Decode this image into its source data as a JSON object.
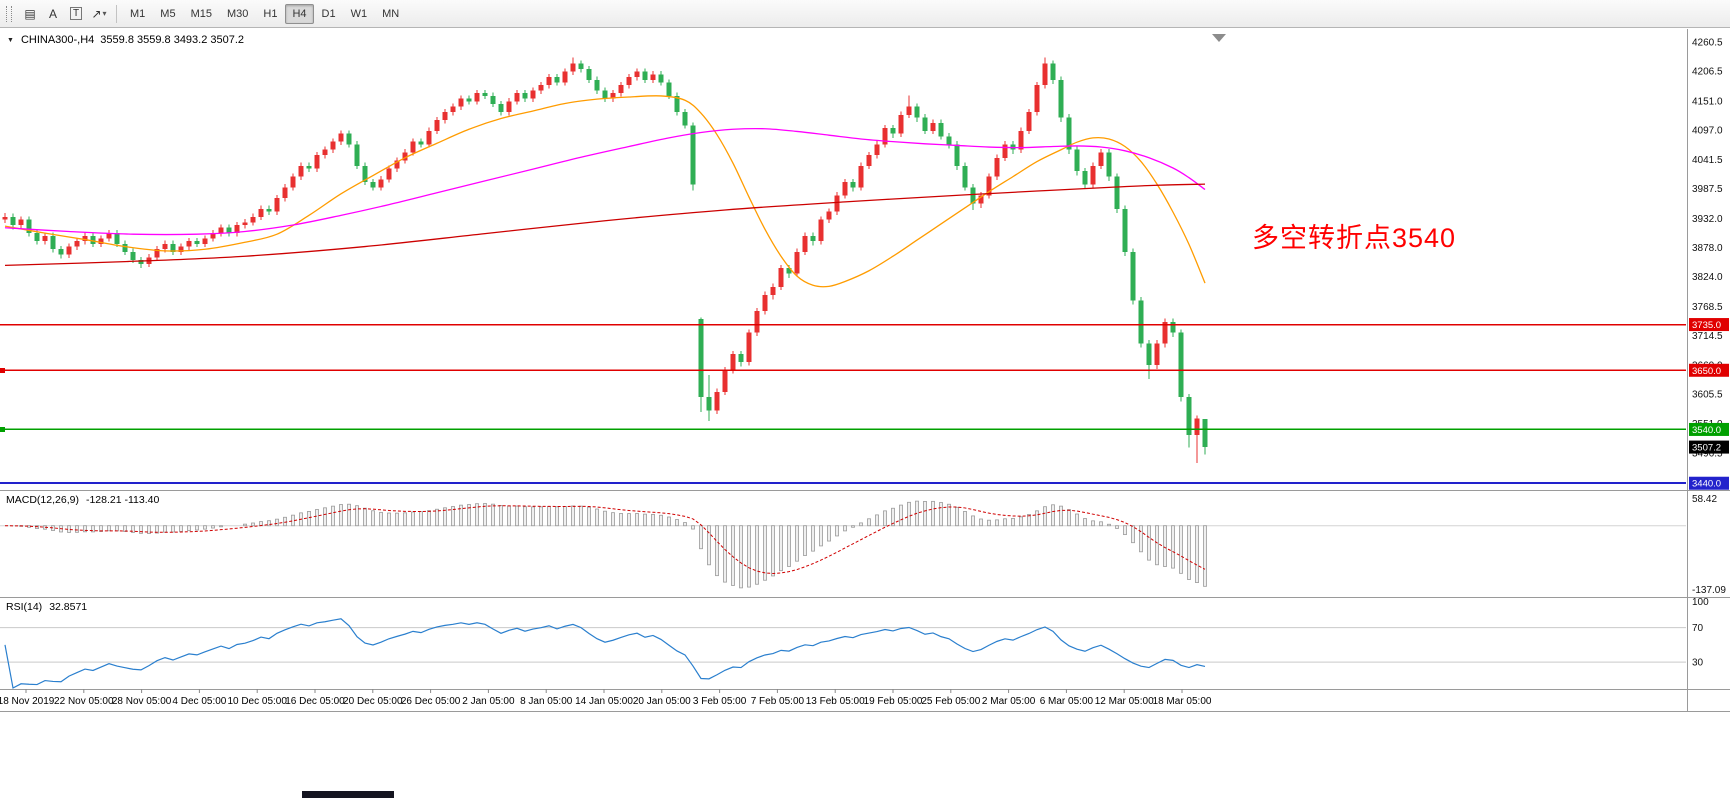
{
  "icons": {
    "charts_panel": "▤",
    "collapse": "▼",
    "caret_down": "▾",
    "arrow_shape": "↗"
  },
  "toolbar": {
    "tools": [
      {
        "id": "text",
        "label": "A"
      },
      {
        "id": "label",
        "label": "T"
      }
    ],
    "timeframes": [
      "M1",
      "M5",
      "M15",
      "M30",
      "H1",
      "H4",
      "D1",
      "W1",
      "MN"
    ],
    "active_timeframe": "H4"
  },
  "chart": {
    "title": "CHINA300-,H4",
    "ohlc_text": "3559.8 3559.8 3493.2 3507.2",
    "annotation": {
      "text": "多空转折点3540",
      "color": "#ff0000"
    }
  },
  "chart_data": {
    "type": "candlestick",
    "symbol": "CHINA300-",
    "timeframe": "H4",
    "ohlc_current": {
      "open": 3559.8,
      "high": 3559.8,
      "low": 3493.2,
      "close": 3507.2
    },
    "colors": {
      "up": "#e83030",
      "down": "#2fae54",
      "ma_fast": "#ff9c00",
      "ma_mid": "#ff00ff",
      "ma_slow": "#cc0000",
      "macd_hist_fill": "#efefef",
      "macd_hist_stroke": "#9a9a9a",
      "macd_signal": "#d00000",
      "rsi_line": "#2a7fce"
    },
    "price_axis": {
      "top_value": 4277,
      "bottom_value": 3433,
      "ticks": [
        "4260.5",
        "4206.5",
        "4151.0",
        "4097.0",
        "4041.5",
        "3987.5",
        "3932.0",
        "3878.0",
        "3824.0",
        "3768.5",
        "3714.5",
        "3660.0",
        "3605.5",
        "3551.0",
        "3496.5",
        "3442.0"
      ]
    },
    "hlines": [
      {
        "value": 3735.0,
        "label": "3735.0",
        "color": "#e00000",
        "width": 1.5,
        "edge_marker": false
      },
      {
        "value": 3650.0,
        "label": "3650.0",
        "color": "#e00000",
        "width": 1.5,
        "edge_marker": true
      },
      {
        "value": 3540.0,
        "label": "3540.0",
        "color": "#00a000",
        "width": 1.5,
        "edge_marker": true
      },
      {
        "value": 3440.0,
        "label": "3440.0",
        "color": "#2222cc",
        "width": 2,
        "edge_marker": false
      }
    ],
    "current_price": {
      "value": 3507.2,
      "label": "3507.2",
      "color": "#000000"
    },
    "moving_averages": [
      {
        "name": "fast",
        "color": "#ff9c00",
        "points": [
          [
            0,
            3918
          ],
          [
            5,
            3905
          ],
          [
            10,
            3893
          ],
          [
            15,
            3880
          ],
          [
            20,
            3872
          ],
          [
            25,
            3875
          ],
          [
            30,
            3888
          ],
          [
            34,
            3903
          ],
          [
            38,
            3938
          ],
          [
            42,
            3978
          ],
          [
            46,
            4012
          ],
          [
            50,
            4045
          ],
          [
            54,
            4072
          ],
          [
            58,
            4098
          ],
          [
            62,
            4118
          ],
          [
            66,
            4132
          ],
          [
            70,
            4146
          ],
          [
            74,
            4154
          ],
          [
            78,
            4158
          ],
          [
            82,
            4160
          ],
          [
            85,
            4152
          ],
          [
            87,
            4128
          ],
          [
            89,
            4088
          ],
          [
            91,
            4035
          ],
          [
            93,
            3972
          ],
          [
            95,
            3912
          ],
          [
            97,
            3862
          ],
          [
            99,
            3825
          ],
          [
            101,
            3808
          ],
          [
            103,
            3806
          ],
          [
            105,
            3815
          ],
          [
            108,
            3835
          ],
          [
            111,
            3862
          ],
          [
            114,
            3892
          ],
          [
            117,
            3922
          ],
          [
            120,
            3952
          ],
          [
            123,
            3982
          ],
          [
            126,
            4010
          ],
          [
            129,
            4038
          ],
          [
            132,
            4060
          ],
          [
            134,
            4074
          ],
          [
            136,
            4082
          ],
          [
            138,
            4080
          ],
          [
            140,
            4066
          ],
          [
            142,
            4038
          ],
          [
            144,
            3996
          ],
          [
            146,
            3944
          ],
          [
            148,
            3884
          ],
          [
            150,
            3812
          ]
        ]
      },
      {
        "name": "mid",
        "color": "#ff00ff",
        "points": [
          [
            0,
            3915
          ],
          [
            8,
            3908
          ],
          [
            16,
            3903
          ],
          [
            24,
            3903
          ],
          [
            30,
            3908
          ],
          [
            36,
            3920
          ],
          [
            42,
            3938
          ],
          [
            48,
            3958
          ],
          [
            54,
            3980
          ],
          [
            60,
            4002
          ],
          [
            66,
            4024
          ],
          [
            72,
            4046
          ],
          [
            78,
            4066
          ],
          [
            83,
            4082
          ],
          [
            87,
            4092
          ],
          [
            91,
            4098
          ],
          [
            95,
            4099
          ],
          [
            99,
            4094
          ],
          [
            103,
            4087
          ],
          [
            107,
            4080
          ],
          [
            111,
            4075
          ],
          [
            115,
            4071
          ],
          [
            119,
            4068
          ],
          [
            123,
            4065
          ],
          [
            127,
            4064
          ],
          [
            131,
            4066
          ],
          [
            134,
            4067
          ],
          [
            137,
            4065
          ],
          [
            140,
            4058
          ],
          [
            143,
            4045
          ],
          [
            146,
            4026
          ],
          [
            148,
            4008
          ],
          [
            150,
            3986
          ]
        ]
      },
      {
        "name": "slow",
        "color": "#cc0000",
        "points": [
          [
            0,
            3845
          ],
          [
            15,
            3852
          ],
          [
            30,
            3862
          ],
          [
            45,
            3880
          ],
          [
            60,
            3904
          ],
          [
            75,
            3928
          ],
          [
            90,
            3948
          ],
          [
            105,
            3963
          ],
          [
            120,
            3976
          ],
          [
            130,
            3984
          ],
          [
            138,
            3990
          ],
          [
            144,
            3994
          ],
          [
            150,
            3996
          ]
        ]
      }
    ],
    "candles": [
      [
        3930,
        3942,
        3924,
        3935
      ],
      [
        3935,
        3941,
        3912,
        3920
      ],
      [
        3920,
        3936,
        3914,
        3930
      ],
      [
        3930,
        3936,
        3899,
        3905
      ],
      [
        3905,
        3911,
        3884,
        3890
      ],
      [
        3890,
        3906,
        3884,
        3900
      ],
      [
        3900,
        3906,
        3869,
        3875
      ],
      [
        3875,
        3881,
        3858,
        3865
      ],
      [
        3865,
        3886,
        3859,
        3880
      ],
      [
        3880,
        3896,
        3874,
        3890
      ],
      [
        3890,
        3906,
        3884,
        3900
      ],
      [
        3900,
        3906,
        3879,
        3885
      ],
      [
        3885,
        3901,
        3879,
        3895
      ],
      [
        3895,
        3911,
        3889,
        3905
      ],
      [
        3905,
        3911,
        3879,
        3885
      ],
      [
        3885,
        3891,
        3864,
        3870
      ],
      [
        3870,
        3876,
        3849,
        3855
      ],
      [
        3855,
        3861,
        3840,
        3848
      ],
      [
        3848,
        3866,
        3842,
        3860
      ],
      [
        3860,
        3881,
        3854,
        3875
      ],
      [
        3875,
        3891,
        3869,
        3885
      ],
      [
        3885,
        3891,
        3864,
        3870
      ],
      [
        3870,
        3886,
        3864,
        3880
      ],
      [
        3880,
        3896,
        3874,
        3890
      ],
      [
        3890,
        3896,
        3879,
        3885
      ],
      [
        3885,
        3901,
        3879,
        3895
      ],
      [
        3895,
        3911,
        3889,
        3905
      ],
      [
        3905,
        3921,
        3899,
        3915
      ],
      [
        3915,
        3921,
        3899,
        3905
      ],
      [
        3905,
        3926,
        3899,
        3920
      ],
      [
        3920,
        3931,
        3914,
        3925
      ],
      [
        3925,
        3941,
        3919,
        3935
      ],
      [
        3935,
        3956,
        3929,
        3950
      ],
      [
        3950,
        3956,
        3939,
        3945
      ],
      [
        3945,
        3976,
        3939,
        3970
      ],
      [
        3970,
        3996,
        3964,
        3990
      ],
      [
        3990,
        4016,
        3984,
        4010
      ],
      [
        4010,
        4036,
        4004,
        4030
      ],
      [
        4030,
        4036,
        4019,
        4025
      ],
      [
        4025,
        4056,
        4019,
        4050
      ],
      [
        4050,
        4066,
        4044,
        4060
      ],
      [
        4060,
        4081,
        4054,
        4075
      ],
      [
        4075,
        4096,
        4069,
        4090
      ],
      [
        4090,
        4096,
        4064,
        4070
      ],
      [
        4070,
        4076,
        4024,
        4030
      ],
      [
        4030,
        4036,
        3994,
        4000
      ],
      [
        4000,
        4006,
        3984,
        3990
      ],
      [
        3990,
        4011,
        3984,
        4005
      ],
      [
        4005,
        4031,
        3999,
        4025
      ],
      [
        4025,
        4046,
        4019,
        4040
      ],
      [
        4040,
        4061,
        4034,
        4055
      ],
      [
        4055,
        4081,
        4049,
        4075
      ],
      [
        4075,
        4081,
        4064,
        4070
      ],
      [
        4070,
        4101,
        4064,
        4095
      ],
      [
        4095,
        4121,
        4089,
        4115
      ],
      [
        4115,
        4136,
        4109,
        4130
      ],
      [
        4130,
        4146,
        4124,
        4140
      ],
      [
        4140,
        4161,
        4134,
        4155
      ],
      [
        4155,
        4161,
        4144,
        4150
      ],
      [
        4150,
        4171,
        4144,
        4165
      ],
      [
        4165,
        4171,
        4154,
        4160
      ],
      [
        4160,
        4166,
        4139,
        4145
      ],
      [
        4145,
        4151,
        4124,
        4130
      ],
      [
        4130,
        4156,
        4124,
        4150
      ],
      [
        4150,
        4171,
        4144,
        4165
      ],
      [
        4165,
        4171,
        4149,
        4155
      ],
      [
        4155,
        4176,
        4149,
        4170
      ],
      [
        4170,
        4186,
        4164,
        4180
      ],
      [
        4180,
        4201,
        4174,
        4195
      ],
      [
        4195,
        4201,
        4179,
        4185
      ],
      [
        4185,
        4211,
        4179,
        4205
      ],
      [
        4205,
        4231,
        4199,
        4220
      ],
      [
        4220,
        4226,
        4204,
        4210
      ],
      [
        4210,
        4216,
        4184,
        4190
      ],
      [
        4190,
        4196,
        4164,
        4170
      ],
      [
        4170,
        4176,
        4149,
        4155
      ],
      [
        4155,
        4171,
        4149,
        4165
      ],
      [
        4165,
        4186,
        4159,
        4180
      ],
      [
        4180,
        4201,
        4174,
        4195
      ],
      [
        4195,
        4211,
        4189,
        4205
      ],
      [
        4205,
        4211,
        4184,
        4190
      ],
      [
        4190,
        4206,
        4184,
        4200
      ],
      [
        4200,
        4206,
        4179,
        4185
      ],
      [
        4185,
        4191,
        4154,
        4160
      ],
      [
        4160,
        4166,
        4124,
        4130
      ],
      [
        4130,
        4136,
        4099,
        4105
      ],
      [
        4105,
        4111,
        3984,
        3995
      ],
      [
        3745,
        3748,
        3572,
        3600
      ],
      [
        3600,
        3641,
        3556,
        3575
      ],
      [
        3575,
        3616,
        3569,
        3610
      ],
      [
        3610,
        3656,
        3604,
        3650
      ],
      [
        3650,
        3686,
        3644,
        3680
      ],
      [
        3680,
        3686,
        3657,
        3665
      ],
      [
        3665,
        3726,
        3659,
        3720
      ],
      [
        3720,
        3766,
        3714,
        3760
      ],
      [
        3760,
        3796,
        3754,
        3790
      ],
      [
        3790,
        3811,
        3782,
        3805
      ],
      [
        3805,
        3846,
        3799,
        3840
      ],
      [
        3840,
        3846,
        3822,
        3830
      ],
      [
        3830,
        3876,
        3824,
        3870
      ],
      [
        3870,
        3906,
        3864,
        3900
      ],
      [
        3900,
        3906,
        3882,
        3890
      ],
      [
        3890,
        3936,
        3884,
        3930
      ],
      [
        3930,
        3951,
        3924,
        3945
      ],
      [
        3945,
        3981,
        3939,
        3975
      ],
      [
        3975,
        4006,
        3969,
        4000
      ],
      [
        4000,
        4006,
        3982,
        3990
      ],
      [
        3990,
        4036,
        3984,
        4030
      ],
      [
        4030,
        4056,
        4024,
        4050
      ],
      [
        4050,
        4076,
        4044,
        4070
      ],
      [
        4070,
        4106,
        4064,
        4100
      ],
      [
        4100,
        4106,
        4082,
        4090
      ],
      [
        4090,
        4131,
        4084,
        4125
      ],
      [
        4125,
        4161,
        4119,
        4140
      ],
      [
        4140,
        4146,
        4112,
        4120
      ],
      [
        4120,
        4126,
        4089,
        4095
      ],
      [
        4095,
        4116,
        4089,
        4110
      ],
      [
        4110,
        4116,
        4079,
        4085
      ],
      [
        4085,
        4091,
        4062,
        4070
      ],
      [
        4070,
        4076,
        4022,
        4030
      ],
      [
        4030,
        4036,
        3984,
        3990
      ],
      [
        3990,
        3996,
        3948,
        3960
      ],
      [
        3960,
        3981,
        3952,
        3975
      ],
      [
        3975,
        4016,
        3969,
        4010
      ],
      [
        4010,
        4051,
        4004,
        4045
      ],
      [
        4045,
        4076,
        4039,
        4070
      ],
      [
        4070,
        4076,
        4052,
        4060
      ],
      [
        4060,
        4101,
        4054,
        4095
      ],
      [
        4095,
        4136,
        4089,
        4130
      ],
      [
        4130,
        4186,
        4124,
        4180
      ],
      [
        4180,
        4231,
        4174,
        4220
      ],
      [
        4220,
        4226,
        4182,
        4190
      ],
      [
        4190,
        4196,
        4112,
        4120
      ],
      [
        4120,
        4126,
        4052,
        4060
      ],
      [
        4060,
        4066,
        4012,
        4020
      ],
      [
        4020,
        4026,
        3987,
        3995
      ],
      [
        3995,
        4036,
        3989,
        4030
      ],
      [
        4030,
        4061,
        4024,
        4055
      ],
      [
        4055,
        4061,
        4002,
        4010
      ],
      [
        4010,
        4016,
        3942,
        3950
      ],
      [
        3950,
        3956,
        3862,
        3870
      ],
      [
        3870,
        3876,
        3772,
        3780
      ],
      [
        3780,
        3786,
        3692,
        3700
      ],
      [
        3700,
        3706,
        3634,
        3660
      ],
      [
        3660,
        3706,
        3652,
        3700
      ],
      [
        3700,
        3746,
        3692,
        3740
      ],
      [
        3740,
        3746,
        3712,
        3720
      ],
      [
        3720,
        3726,
        3592,
        3600
      ],
      [
        3600,
        3606,
        3506,
        3530
      ],
      [
        3530,
        3566,
        3478,
        3560
      ],
      [
        3559.8,
        3559.8,
        3493.2,
        3507.2
      ]
    ],
    "time_labels": [
      "18 Nov 2019",
      "22 Nov 05:00",
      "28 Nov 05:00",
      "4 Dec 05:00",
      "10 Dec 05:00",
      "16 Dec 05:00",
      "20 Dec 05:00",
      "26 Dec 05:00",
      "2 Jan 05:00",
      "8 Jan 05:00",
      "14 Jan 05:00",
      "20 Jan 05:00",
      "3 Feb 05:00",
      "7 Feb 05:00",
      "13 Feb 05:00",
      "19 Feb 05:00",
      "25 Feb 05:00",
      "2 Mar 05:00",
      "6 Mar 05:00",
      "12 Mar 05:00",
      "18 Mar 05:00"
    ],
    "indicators": {
      "macd": {
        "name": "MACD(12,26,9)",
        "values": "-128.21 -113.40",
        "fast": 12,
        "slow": 26,
        "signal_period": 9,
        "axis_ticks": [
          "58.42",
          "-137.09"
        ]
      },
      "rsi": {
        "name": "RSI(14)",
        "value": "32.8571",
        "period": 14,
        "levels": [
          70,
          30
        ],
        "axis_ticks": [
          "100",
          "70",
          "30"
        ]
      }
    }
  }
}
